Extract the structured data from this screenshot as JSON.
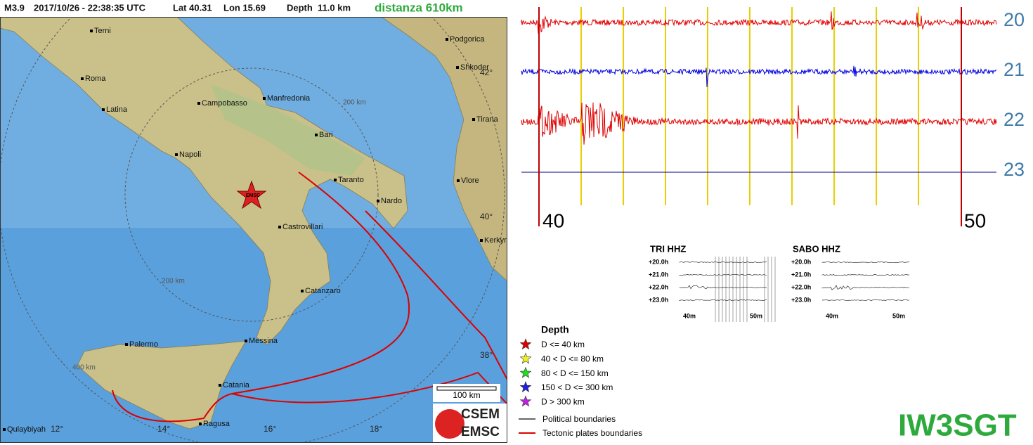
{
  "header": {
    "magnitude": "M3.9",
    "datetime": "2017/10/26 - 22:38:35 UTC",
    "lat": "Lat 40.31",
    "lon": "Lon 15.69",
    "depth": "Depth  11.0 km",
    "distance": "distanza 610km"
  },
  "map": {
    "cities": [
      "Terni",
      "Roma",
      "Latina",
      "Campobasso",
      "Manfredonia",
      "Bari",
      "Napoli",
      "Taranto",
      "Nardo",
      "Castrovillari",
      "Catanzaro",
      "Messina",
      "Palermo",
      "Catania",
      "Ragusa",
      "Podgorica",
      "Shkoder",
      "Tirana",
      "Vlore",
      "Kerkyr",
      "Qulaybiyah"
    ],
    "ring_labels": [
      "200 km",
      "200 km",
      "400 km"
    ],
    "lat_labels": [
      "42°",
      "40°",
      "38°"
    ],
    "lon_labels": [
      "12°",
      "14°",
      "16°",
      "18°"
    ],
    "epicenter_label": "EMSC",
    "scale_bar": "100 km",
    "logo": [
      "CSEM",
      "EMSC"
    ]
  },
  "seismogram": {
    "hours": [
      "20",
      "21",
      "22",
      "23"
    ],
    "minutes": [
      "40",
      "50"
    ]
  },
  "panels": [
    {
      "title": "TRI HHZ",
      "rows": [
        "+20.0h",
        "+21.0h",
        "+22.0h",
        "+23.0h"
      ],
      "minutes": [
        "40m",
        "50m"
      ]
    },
    {
      "title": "SABO HHZ",
      "rows": [
        "+20.0h",
        "+21.0h",
        "+22.0h",
        "+23.0h"
      ],
      "minutes": [
        "40m",
        "50m"
      ]
    }
  ],
  "legend": {
    "title": "Depth",
    "items": [
      "D <= 40 km",
      "40 < D <= 80 km",
      "80 < D <= 150 km",
      "150 < D <= 300 km",
      "D > 300 km"
    ],
    "lines": [
      "Political boundaries",
      "Tectonic plates boundaries"
    ]
  },
  "callsign": "IW3SGT"
}
